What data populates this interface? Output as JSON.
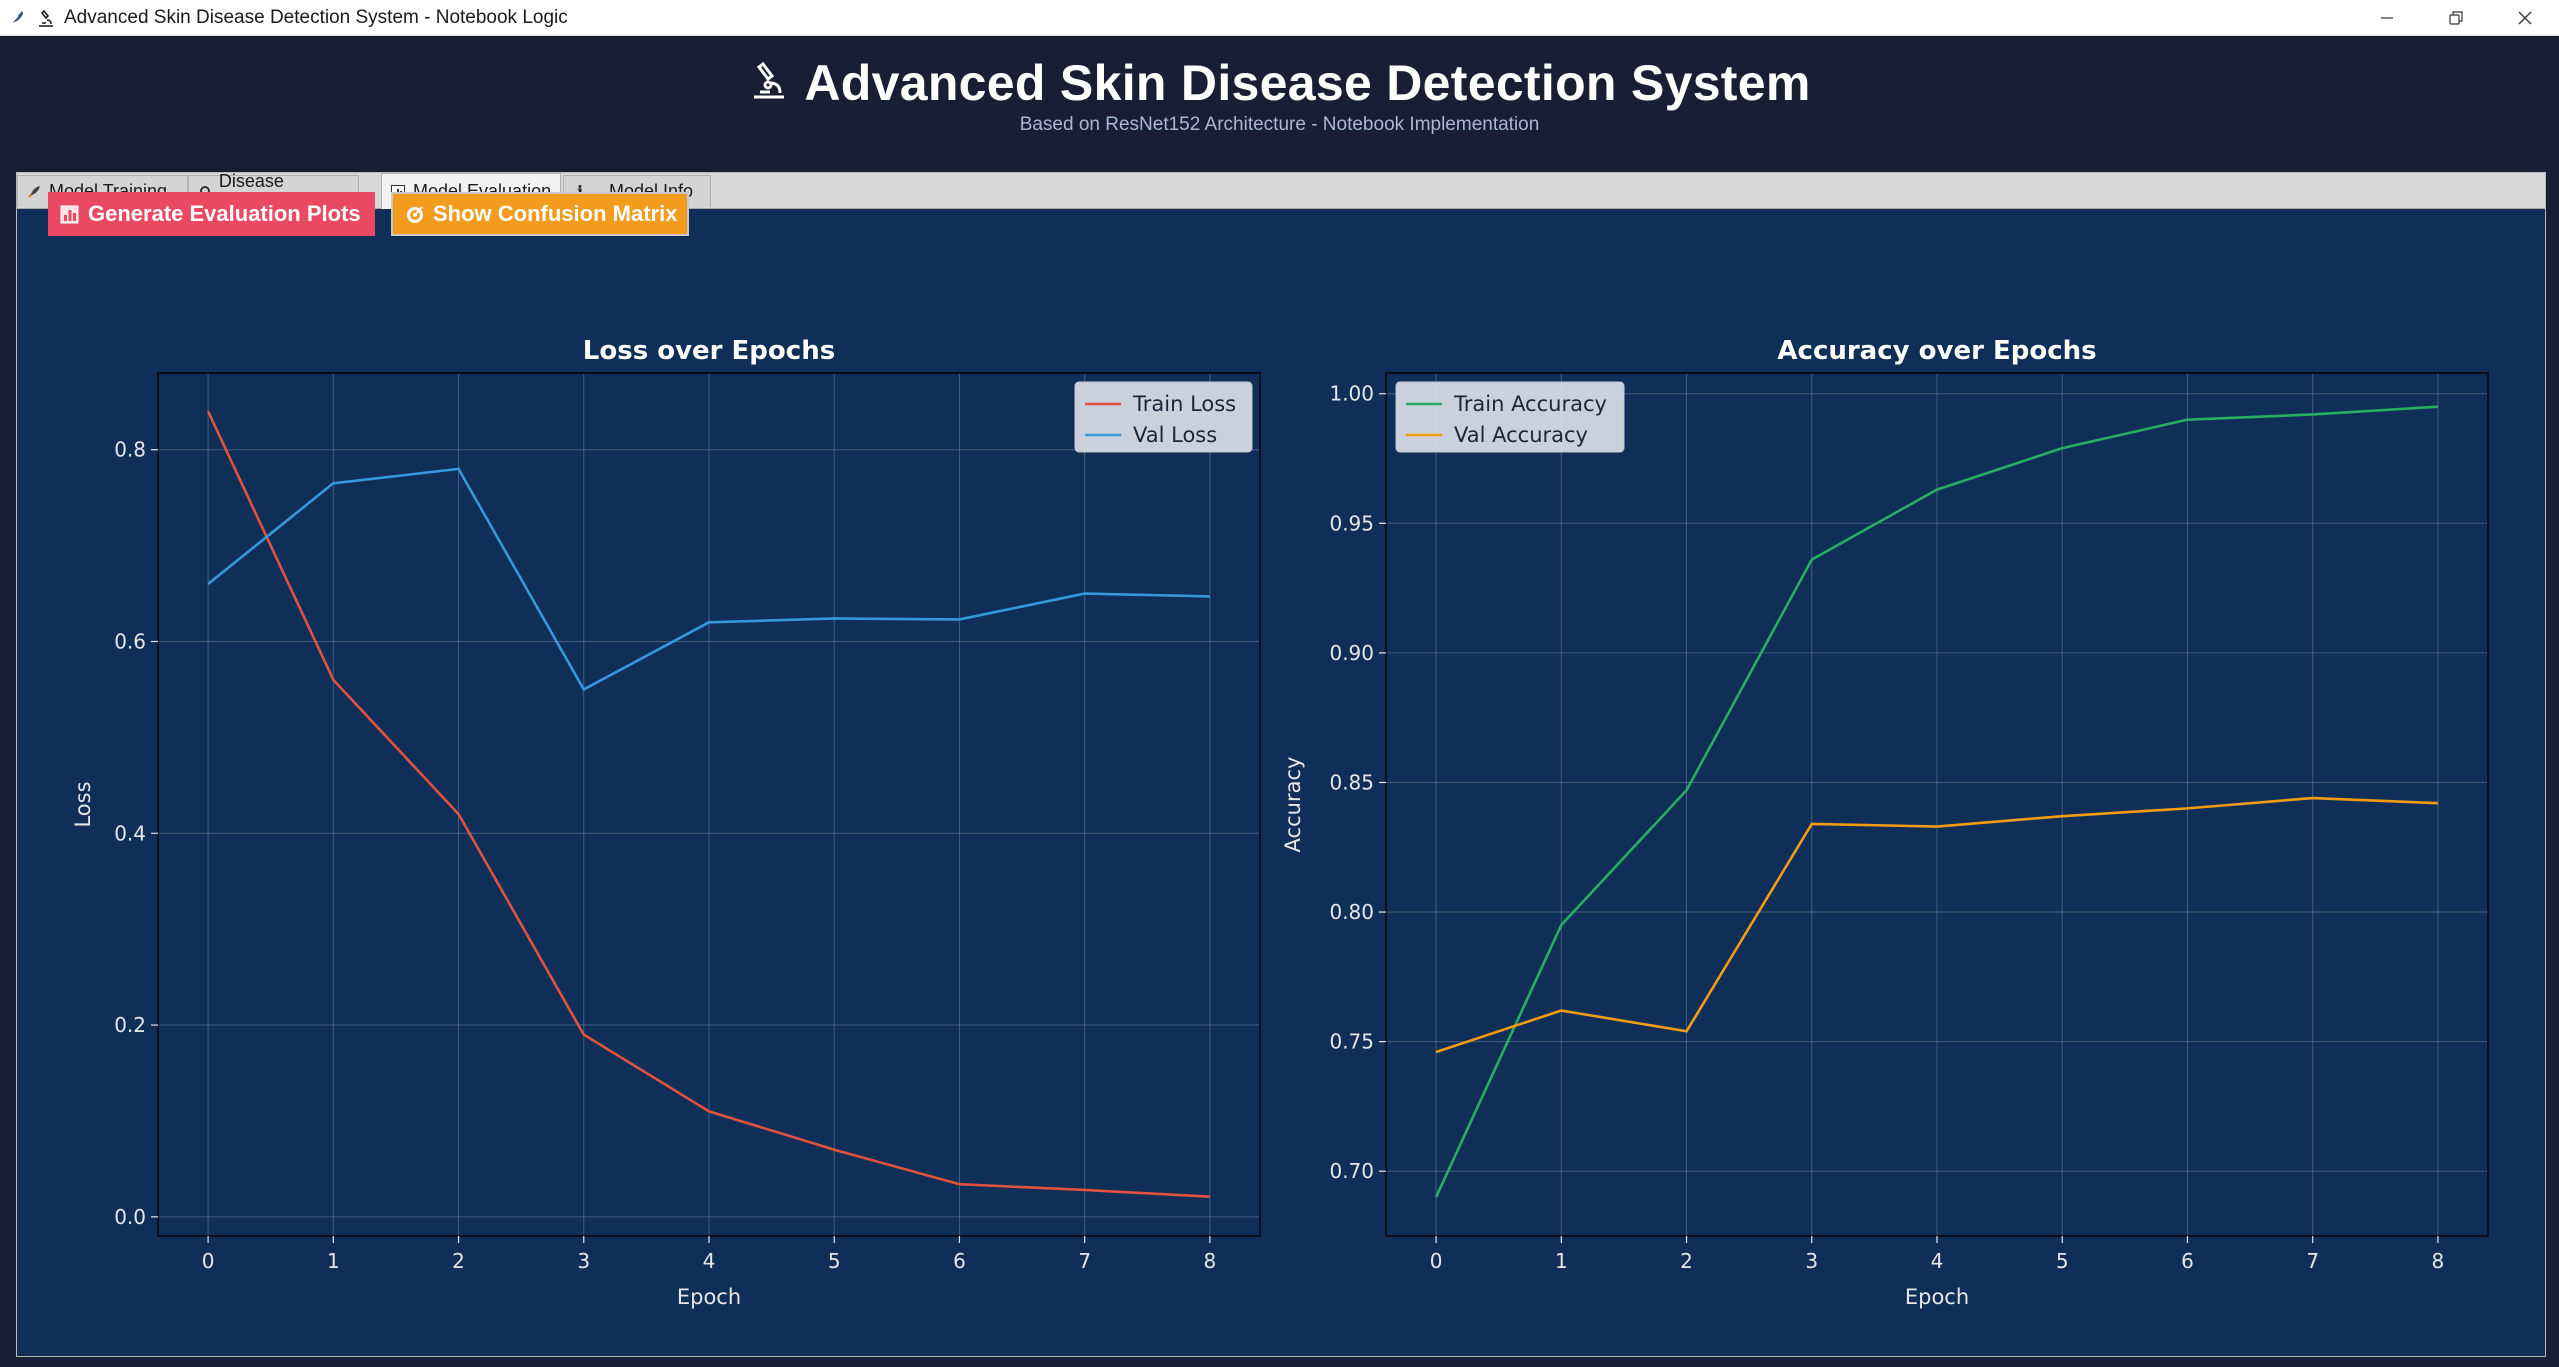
{
  "window": {
    "title": "Advanced Skin Disease Detection System - Notebook Logic",
    "icons": [
      "feather-icon",
      "microscope-icon"
    ],
    "controls": [
      "minimize-icon",
      "restore-icon",
      "close-icon"
    ]
  },
  "header": {
    "title": "Advanced Skin Disease Detection System",
    "title_icon": "microscope-icon",
    "subtitle": "Based on ResNet152 Architecture - Notebook Implementation"
  },
  "tabs": [
    {
      "label": "Model Training",
      "icon": "rocket-icon",
      "active": false
    },
    {
      "label": "Disease Prediction",
      "icon": "magnifier-icon",
      "active": false
    },
    {
      "label": "Model Evaluation",
      "icon": "chart-icon",
      "active": true
    },
    {
      "label": "Model Info",
      "icon": "info-icon",
      "active": false
    }
  ],
  "buttons": {
    "generate_plots": {
      "label": "Generate Evaluation Plots",
      "icon": "chart-icon",
      "color": "#ea4963"
    },
    "confusion_matrix": {
      "label": "Show Confusion Matrix",
      "icon": "target-icon",
      "color": "#f29b1d"
    }
  },
  "colors": {
    "background": "#1a1e34",
    "plot_area": "#0f2f59",
    "train_loss": "#e0523e",
    "val_loss": "#3498db",
    "train_acc": "#27ae60",
    "val_acc": "#f39c12"
  },
  "chart_data": [
    {
      "type": "line",
      "title": "Loss over Epochs",
      "xlabel": "Epoch",
      "ylabel": "Loss",
      "x": [
        0,
        1,
        2,
        3,
        4,
        5,
        6,
        7,
        8
      ],
      "xlim": [
        -0.4,
        8.4
      ],
      "ylim": [
        -0.02,
        0.88
      ],
      "yticks": [
        0.0,
        0.2,
        0.4,
        0.6,
        0.8
      ],
      "ytick_labels": [
        "0.0",
        "0.2",
        "0.4",
        "0.6",
        "0.8"
      ],
      "xtick_labels": [
        "0",
        "1",
        "2",
        "3",
        "4",
        "5",
        "6",
        "7",
        "8"
      ],
      "grid": true,
      "legend": "top-right",
      "series": [
        {
          "name": "Train Loss",
          "color": "#e0523e",
          "values": [
            0.84,
            0.56,
            0.42,
            0.19,
            0.11,
            0.07,
            0.034,
            0.028,
            0.021
          ]
        },
        {
          "name": "Val Loss",
          "color": "#3498db",
          "values": [
            0.66,
            0.765,
            0.78,
            0.55,
            0.62,
            0.624,
            0.623,
            0.65,
            0.647
          ]
        }
      ]
    },
    {
      "type": "line",
      "title": "Accuracy over Epochs",
      "xlabel": "Epoch",
      "ylabel": "Accuracy",
      "x": [
        0,
        1,
        2,
        3,
        4,
        5,
        6,
        7,
        8
      ],
      "xlim": [
        -0.4,
        8.4
      ],
      "ylim": [
        0.675,
        1.008
      ],
      "yticks": [
        0.7,
        0.75,
        0.8,
        0.85,
        0.9,
        0.95,
        1.0
      ],
      "ytick_labels": [
        "0.70",
        "0.75",
        "0.80",
        "0.85",
        "0.90",
        "0.95",
        "1.00"
      ],
      "xtick_labels": [
        "0",
        "1",
        "2",
        "3",
        "4",
        "5",
        "6",
        "7",
        "8"
      ],
      "grid": true,
      "legend": "top-left",
      "series": [
        {
          "name": "Train Accuracy",
          "color": "#27ae60",
          "values": [
            0.69,
            0.795,
            0.847,
            0.936,
            0.963,
            0.979,
            0.99,
            0.992,
            0.995
          ]
        },
        {
          "name": "Val Accuracy",
          "color": "#f39c12",
          "values": [
            0.746,
            0.762,
            0.754,
            0.834,
            0.833,
            0.837,
            0.84,
            0.844,
            0.842
          ]
        }
      ]
    }
  ]
}
